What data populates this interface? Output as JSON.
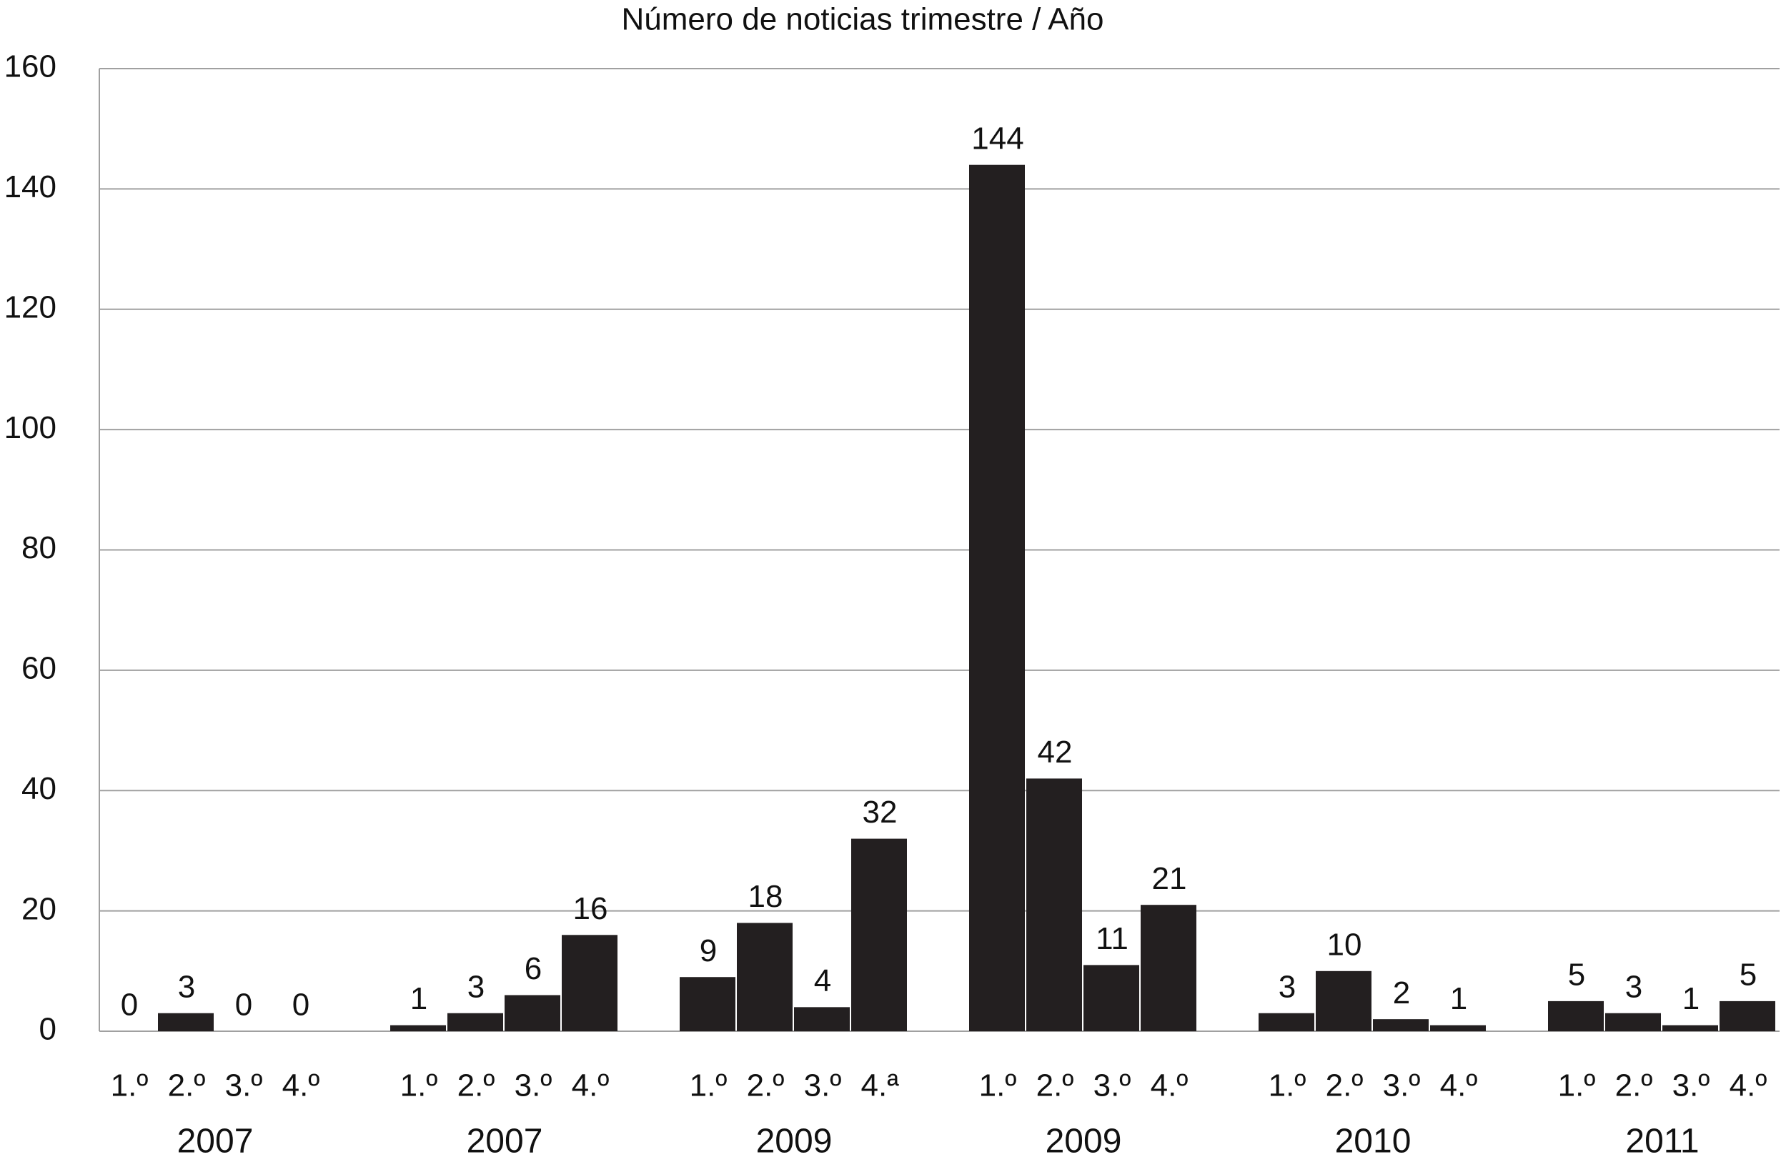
{
  "chart_data": {
    "type": "bar",
    "title": "Número de noticias trimestre / Año",
    "categories": [
      "1.º",
      "2.º",
      "3.º",
      "4.º",
      "1.º",
      "2.º",
      "3.º",
      "4.º",
      "1.º",
      "2.º",
      "3.º",
      "4.ª",
      "1.º",
      "2.º",
      "3.º",
      "4.º",
      "1.º",
      "2.º",
      "3.º",
      "4.º",
      "1.º",
      "2.º",
      "3.º",
      "4.º"
    ],
    "group_labels": [
      "2007",
      "2007",
      "2009",
      "2009",
      "2010",
      "2011"
    ],
    "values": [
      0,
      3,
      0,
      0,
      1,
      3,
      6,
      16,
      9,
      18,
      4,
      32,
      144,
      42,
      11,
      21,
      3,
      10,
      2,
      1,
      5,
      3,
      1,
      5
    ],
    "color": "#231f20",
    "ylim": [
      0,
      160
    ],
    "yticks": [
      0,
      20,
      40,
      60,
      80,
      100,
      120,
      140,
      160
    ],
    "grid": true
  }
}
